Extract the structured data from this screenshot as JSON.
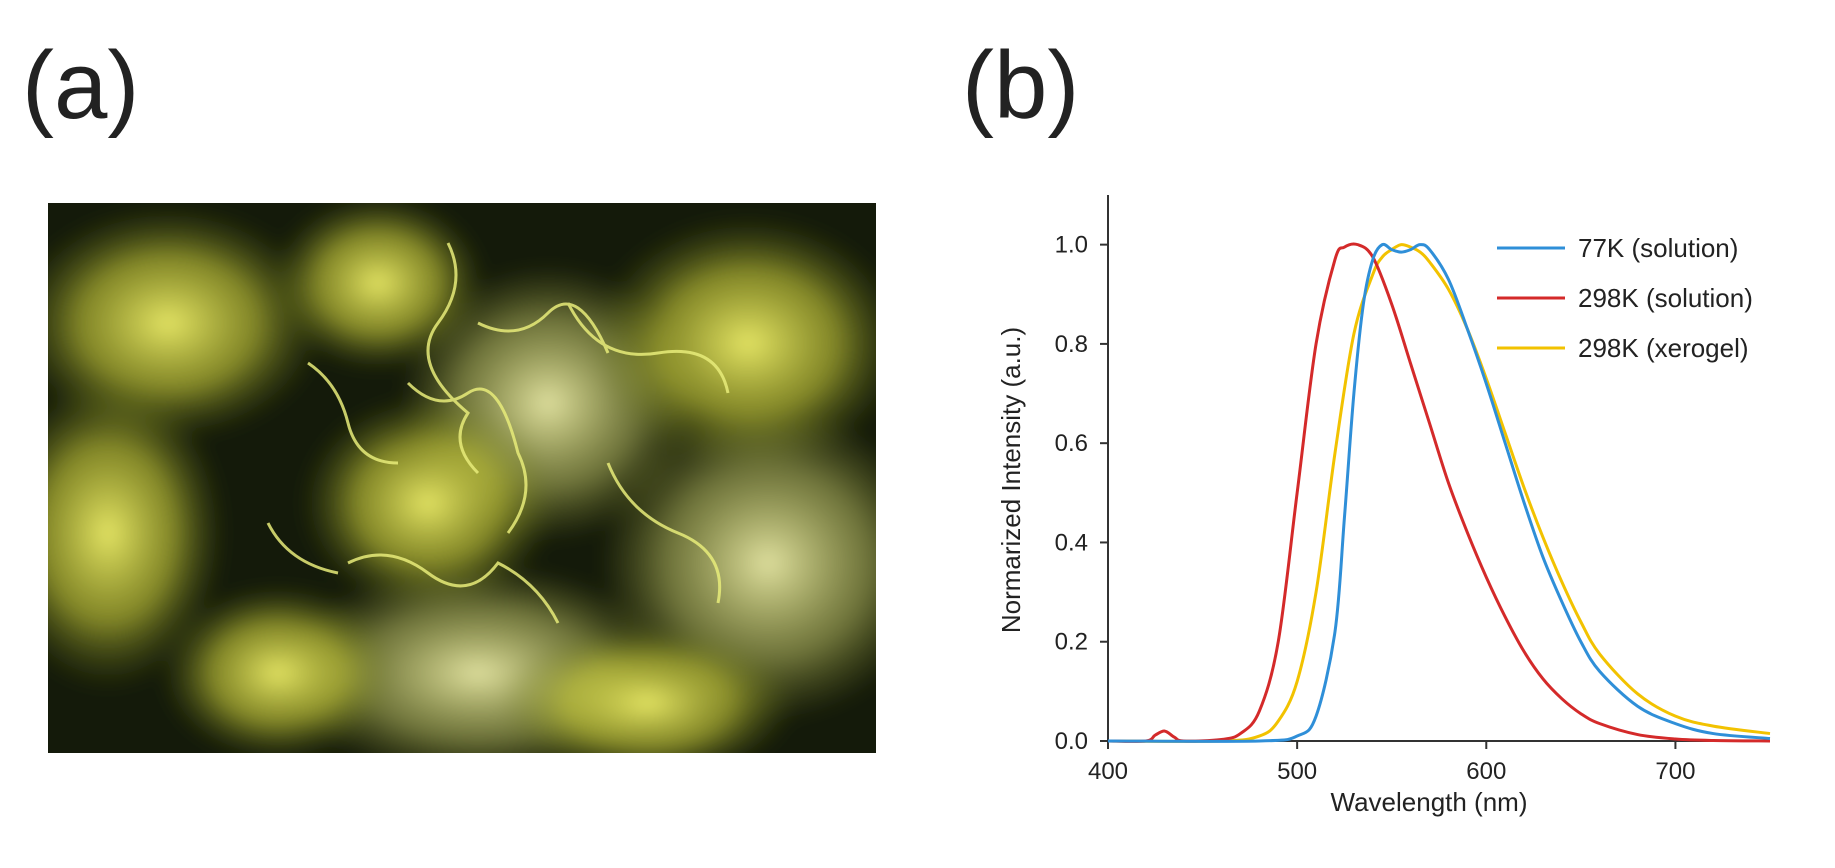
{
  "panels": {
    "a_label": "(a)",
    "b_label": "(b)"
  },
  "photo": {
    "icon": "microscope-photo-yellow-aggregates",
    "colors": {
      "dark": "#141a0a",
      "mid": "#5c6a16",
      "bright": "#e8ec5a"
    }
  },
  "chart_data": {
    "type": "line",
    "title": "",
    "xlabel": "Wavelength (nm)",
    "ylabel": "Normarized Intensity (a.u.)",
    "xlim": [
      400,
      750
    ],
    "ylim": [
      0,
      1.1
    ],
    "x_ticks": [
      400,
      500,
      600,
      700
    ],
    "y_ticks": [
      0.0,
      0.2,
      0.4,
      0.6,
      0.8,
      1.0
    ],
    "x_tick_labels": [
      "400",
      "500",
      "600",
      "700"
    ],
    "y_tick_labels": [
      "0.0",
      "0.2",
      "0.4",
      "0.6",
      "0.8",
      "1.0"
    ],
    "grid": false,
    "legend_position": "top-right",
    "series": [
      {
        "name": "77K (solution)",
        "color": "#2f8fd8",
        "x": [
          400,
          480,
          500,
          510,
          520,
          525,
          530,
          535,
          540,
          545,
          550,
          555,
          560,
          565,
          570,
          580,
          590,
          600,
          610,
          620,
          630,
          640,
          650,
          660,
          680,
          700,
          720,
          750
        ],
        "y": [
          0,
          0,
          0.01,
          0.05,
          0.22,
          0.45,
          0.7,
          0.88,
          0.97,
          1.0,
          0.99,
          0.985,
          0.99,
          1.0,
          0.99,
          0.93,
          0.83,
          0.72,
          0.6,
          0.48,
          0.37,
          0.28,
          0.2,
          0.14,
          0.07,
          0.035,
          0.015,
          0.005
        ]
      },
      {
        "name": "298K (solution)",
        "color": "#d42a2a",
        "x": [
          400,
          420,
          425,
          430,
          435,
          440,
          460,
          470,
          480,
          490,
          500,
          510,
          520,
          525,
          532,
          540,
          550,
          560,
          570,
          580,
          590,
          600,
          610,
          620,
          630,
          640,
          650,
          660,
          680,
          700,
          720,
          750
        ],
        "y": [
          0,
          0,
          0.012,
          0.02,
          0.008,
          0,
          0.003,
          0.015,
          0.06,
          0.2,
          0.5,
          0.8,
          0.97,
          0.995,
          1.0,
          0.975,
          0.88,
          0.76,
          0.64,
          0.52,
          0.42,
          0.33,
          0.25,
          0.18,
          0.125,
          0.085,
          0.055,
          0.035,
          0.013,
          0.004,
          0.001,
          0
        ]
      },
      {
        "name": "298K (xerogel)",
        "color": "#f2c200",
        "x": [
          400,
          460,
          480,
          490,
          500,
          510,
          520,
          530,
          540,
          545,
          550,
          555,
          560,
          565,
          570,
          580,
          590,
          600,
          610,
          620,
          630,
          640,
          650,
          660,
          680,
          700,
          720,
          750
        ],
        "y": [
          0,
          0,
          0.01,
          0.04,
          0.12,
          0.3,
          0.58,
          0.82,
          0.94,
          0.975,
          0.99,
          1.0,
          0.995,
          0.985,
          0.965,
          0.91,
          0.83,
          0.73,
          0.62,
          0.51,
          0.41,
          0.32,
          0.24,
          0.175,
          0.095,
          0.05,
          0.03,
          0.015
        ]
      }
    ]
  }
}
